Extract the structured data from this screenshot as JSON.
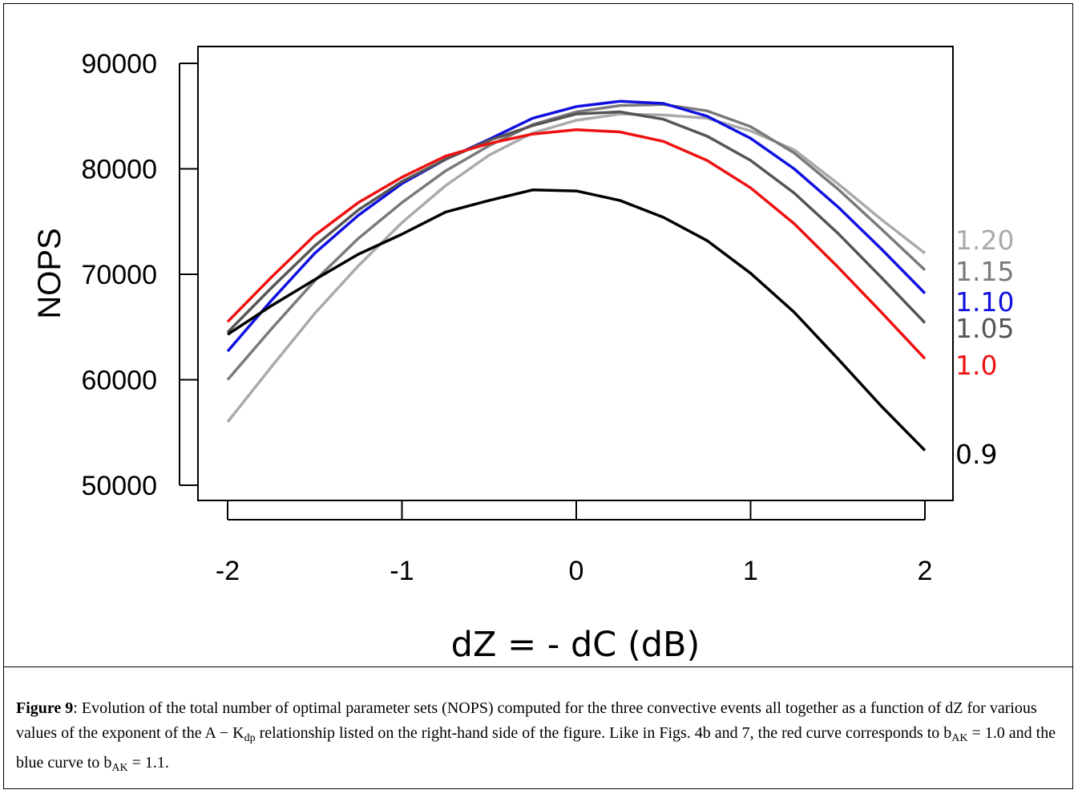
{
  "chart_data": {
    "type": "line",
    "xlabel": "dZ = - dC (dB)",
    "ylabel": "NOPS",
    "xlim": [
      -2.3,
      2.15
    ],
    "ylim": [
      48000,
      91000
    ],
    "xticks": [
      "-2",
      "-1",
      "0",
      "1",
      "2"
    ],
    "yticks": [
      "50000",
      "60000",
      "70000",
      "80000",
      "90000"
    ],
    "x": [
      -2.0,
      -1.75,
      -1.5,
      -1.25,
      -1.0,
      -0.75,
      -0.5,
      -0.25,
      0.0,
      0.25,
      0.5,
      0.75,
      1.0,
      1.25,
      1.5,
      1.75,
      2.0
    ],
    "series": [
      {
        "name": "1.20",
        "color": "#aaaaaa",
        "values": [
          56000,
          61200,
          66300,
          70800,
          74900,
          78400,
          81300,
          83400,
          84600,
          85200,
          85100,
          84800,
          83600,
          81800,
          78600,
          75200,
          72000
        ]
      },
      {
        "name": "1.15",
        "color": "#7a7a7a",
        "values": [
          60000,
          64800,
          69400,
          73400,
          76800,
          79800,
          82200,
          84200,
          85400,
          86000,
          86100,
          85500,
          84000,
          81500,
          78100,
          74300,
          70400
        ]
      },
      {
        "name": "1.10",
        "color": "#1010e0",
        "values": [
          62700,
          67500,
          72000,
          75600,
          78600,
          80900,
          82800,
          84800,
          85900,
          86400,
          86200,
          85000,
          82900,
          80000,
          76400,
          72400,
          68200
        ]
      },
      {
        "name": "1.05",
        "color": "#555555",
        "values": [
          64500,
          68700,
          72700,
          76100,
          78800,
          80900,
          82700,
          84100,
          85200,
          85400,
          84700,
          83100,
          80800,
          77700,
          73900,
          69700,
          65400
        ]
      },
      {
        "name": "1.0",
        "color": "#ee1111",
        "values": [
          65500,
          69700,
          73700,
          76800,
          79200,
          81200,
          82400,
          83300,
          83700,
          83500,
          82600,
          80800,
          78200,
          74800,
          70700,
          66400,
          62000
        ]
      },
      {
        "name": "0.9",
        "color": "#000000",
        "values": [
          64300,
          67000,
          69500,
          71900,
          73800,
          75900,
          77000,
          78000,
          77900,
          77000,
          75400,
          73200,
          70100,
          66400,
          62000,
          57500,
          53300
        ]
      }
    ]
  },
  "caption": {
    "label": "Figure 9",
    "text_1": ": Evolution of the total number of optimal parameter sets (NOPS) computed for the three convective events all together as a function of dZ for various values of the exponent of the A − K",
    "sub_1": "dp",
    "text_2": " relationship listed on the right-hand side of the figure. Like in Figs. 4b and 7, the red curve corresponds to b",
    "sub_2": "AK",
    "text_3": " = 1.0 and the blue curve to b",
    "sub_3": "AK",
    "text_4": " = 1.1."
  }
}
